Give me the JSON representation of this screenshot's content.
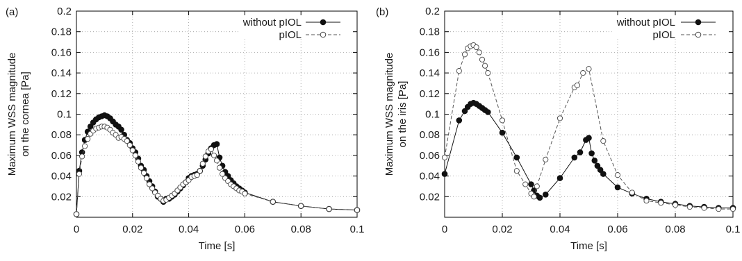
{
  "chart_data": [
    {
      "type": "line",
      "panel_label": "(a)",
      "xlabel": "Time [s]",
      "ylabel": [
        "Maximum WSS magnitude",
        "on the cornea [Pa]"
      ],
      "xlim": [
        0,
        0.1
      ],
      "ylim": [
        0,
        0.2
      ],
      "xticks": [
        "0",
        "0.02",
        "0.04",
        "0.06",
        "0.08",
        "0.1"
      ],
      "xtick_values": [
        0,
        0.02,
        0.04,
        0.06,
        0.08,
        0.1
      ],
      "yticks": [
        "0.02",
        "0.04",
        "0.06",
        "0.08",
        "0.1",
        "0.12",
        "0.14",
        "0.16",
        "0.18",
        "0.2"
      ],
      "ytick_values": [
        0.02,
        0.04,
        0.06,
        0.08,
        0.1,
        0.12,
        0.14,
        0.16,
        0.18,
        0.2
      ],
      "grid": true,
      "legend_position": "top-right",
      "series": [
        {
          "name": "without pIOL",
          "style": "solid-filled",
          "x": [
            0,
            0.001,
            0.002,
            0.003,
            0.004,
            0.005,
            0.006,
            0.007,
            0.008,
            0.009,
            0.01,
            0.011,
            0.012,
            0.013,
            0.014,
            0.015,
            0.016,
            0.017,
            0.018,
            0.019,
            0.02,
            0.021,
            0.022,
            0.023,
            0.024,
            0.025,
            0.026,
            0.027,
            0.028,
            0.029,
            0.03,
            0.031,
            0.032,
            0.033,
            0.034,
            0.035,
            0.036,
            0.037,
            0.038,
            0.039,
            0.04,
            0.041,
            0.042,
            0.043,
            0.044,
            0.045,
            0.046,
            0.047,
            0.048,
            0.049,
            0.05,
            0.051,
            0.052,
            0.053,
            0.054,
            0.055,
            0.056,
            0.057,
            0.058,
            0.059,
            0.06,
            0.07,
            0.08,
            0.09,
            0.1
          ],
          "y": [
            0.003,
            0.045,
            0.063,
            0.075,
            0.083,
            0.088,
            0.092,
            0.095,
            0.097,
            0.098,
            0.099,
            0.098,
            0.096,
            0.093,
            0.09,
            0.088,
            0.085,
            0.08,
            0.075,
            0.072,
            0.067,
            0.063,
            0.057,
            0.05,
            0.046,
            0.04,
            0.035,
            0.03,
            0.025,
            0.02,
            0.018,
            0.015,
            0.018,
            0.018,
            0.02,
            0.022,
            0.025,
            0.028,
            0.031,
            0.034,
            0.038,
            0.04,
            0.041,
            0.042,
            0.045,
            0.05,
            0.056,
            0.062,
            0.067,
            0.07,
            0.071,
            0.058,
            0.05,
            0.044,
            0.04,
            0.036,
            0.033,
            0.03,
            0.028,
            0.026,
            0.024,
            0.015,
            0.011,
            0.008,
            0.007
          ]
        },
        {
          "name": "pIOL",
          "style": "dashed-open",
          "x": [
            0,
            0.001,
            0.002,
            0.003,
            0.004,
            0.005,
            0.006,
            0.007,
            0.008,
            0.009,
            0.01,
            0.011,
            0.012,
            0.013,
            0.014,
            0.015,
            0.016,
            0.017,
            0.018,
            0.019,
            0.02,
            0.021,
            0.022,
            0.023,
            0.024,
            0.025,
            0.026,
            0.027,
            0.028,
            0.029,
            0.03,
            0.031,
            0.032,
            0.033,
            0.034,
            0.035,
            0.036,
            0.037,
            0.038,
            0.039,
            0.04,
            0.041,
            0.042,
            0.043,
            0.044,
            0.045,
            0.046,
            0.047,
            0.048,
            0.049,
            0.05,
            0.051,
            0.052,
            0.053,
            0.054,
            0.055,
            0.056,
            0.057,
            0.058,
            0.059,
            0.06,
            0.07,
            0.08,
            0.09,
            0.1
          ],
          "y": [
            0.003,
            0.042,
            0.059,
            0.069,
            0.076,
            0.081,
            0.084,
            0.086,
            0.087,
            0.088,
            0.088,
            0.087,
            0.085,
            0.082,
            0.08,
            0.077,
            0.078,
            0.076,
            0.074,
            0.07,
            0.065,
            0.06,
            0.054,
            0.048,
            0.043,
            0.038,
            0.032,
            0.028,
            0.024,
            0.021,
            0.018,
            0.016,
            0.017,
            0.019,
            0.021,
            0.023,
            0.026,
            0.029,
            0.032,
            0.034,
            0.036,
            0.039,
            0.04,
            0.041,
            0.045,
            0.052,
            0.059,
            0.064,
            0.066,
            0.06,
            0.055,
            0.048,
            0.042,
            0.038,
            0.035,
            0.032,
            0.03,
            0.028,
            0.026,
            0.025,
            0.023,
            0.015,
            0.011,
            0.008,
            0.007
          ]
        }
      ]
    },
    {
      "type": "line",
      "panel_label": "(b)",
      "xlabel": "Time [s]",
      "ylabel": [
        "Maximum WSS magnitude",
        "on the iris [Pa]"
      ],
      "xlim": [
        0,
        0.1
      ],
      "ylim": [
        0,
        0.2
      ],
      "xticks": [
        "0",
        "0.02",
        "0.04",
        "0.06",
        "0.08",
        "0.1"
      ],
      "xtick_values": [
        0,
        0.02,
        0.04,
        0.06,
        0.08,
        0.1
      ],
      "yticks": [
        "0.02",
        "0.04",
        "0.06",
        "0.08",
        "0.1",
        "0.12",
        "0.14",
        "0.16",
        "0.18",
        "0.2"
      ],
      "ytick_values": [
        0.02,
        0.04,
        0.06,
        0.08,
        0.1,
        0.12,
        0.14,
        0.16,
        0.18,
        0.2
      ],
      "grid": true,
      "legend_position": "top-right",
      "series": [
        {
          "name": "without pIOL",
          "style": "solid-filled",
          "x": [
            0,
            0.005,
            0.007,
            0.008,
            0.009,
            0.01,
            0.011,
            0.012,
            0.013,
            0.014,
            0.015,
            0.02,
            0.025,
            0.03,
            0.031,
            0.032,
            0.033,
            0.035,
            0.04,
            0.045,
            0.047,
            0.049,
            0.05,
            0.051,
            0.052,
            0.053,
            0.054,
            0.055,
            0.06,
            0.065,
            0.07,
            0.075,
            0.08,
            0.085,
            0.09,
            0.095,
            0.1
          ],
          "y": [
            0.042,
            0.094,
            0.103,
            0.107,
            0.11,
            0.111,
            0.11,
            0.108,
            0.106,
            0.104,
            0.102,
            0.082,
            0.058,
            0.032,
            0.026,
            0.021,
            0.019,
            0.022,
            0.038,
            0.058,
            0.063,
            0.075,
            0.077,
            0.062,
            0.055,
            0.05,
            0.046,
            0.042,
            0.029,
            0.023,
            0.018,
            0.015,
            0.013,
            0.011,
            0.01,
            0.009,
            0.009
          ]
        },
        {
          "name": "pIOL",
          "style": "dashed-open",
          "x": [
            0,
            0.005,
            0.007,
            0.008,
            0.009,
            0.01,
            0.011,
            0.012,
            0.013,
            0.014,
            0.015,
            0.02,
            0.025,
            0.028,
            0.03,
            0.031,
            0.032,
            0.035,
            0.04,
            0.045,
            0.046,
            0.048,
            0.05,
            0.055,
            0.06,
            0.065,
            0.07,
            0.075,
            0.08,
            0.085,
            0.09,
            0.095,
            0.1
          ],
          "y": [
            0.058,
            0.142,
            0.158,
            0.164,
            0.166,
            0.167,
            0.165,
            0.16,
            0.153,
            0.147,
            0.14,
            0.094,
            0.045,
            0.032,
            0.023,
            0.02,
            0.03,
            0.056,
            0.096,
            0.126,
            0.128,
            0.14,
            0.144,
            0.074,
            0.041,
            0.024,
            0.016,
            0.014,
            0.012,
            0.01,
            0.009,
            0.008,
            0.008
          ]
        }
      ]
    }
  ]
}
